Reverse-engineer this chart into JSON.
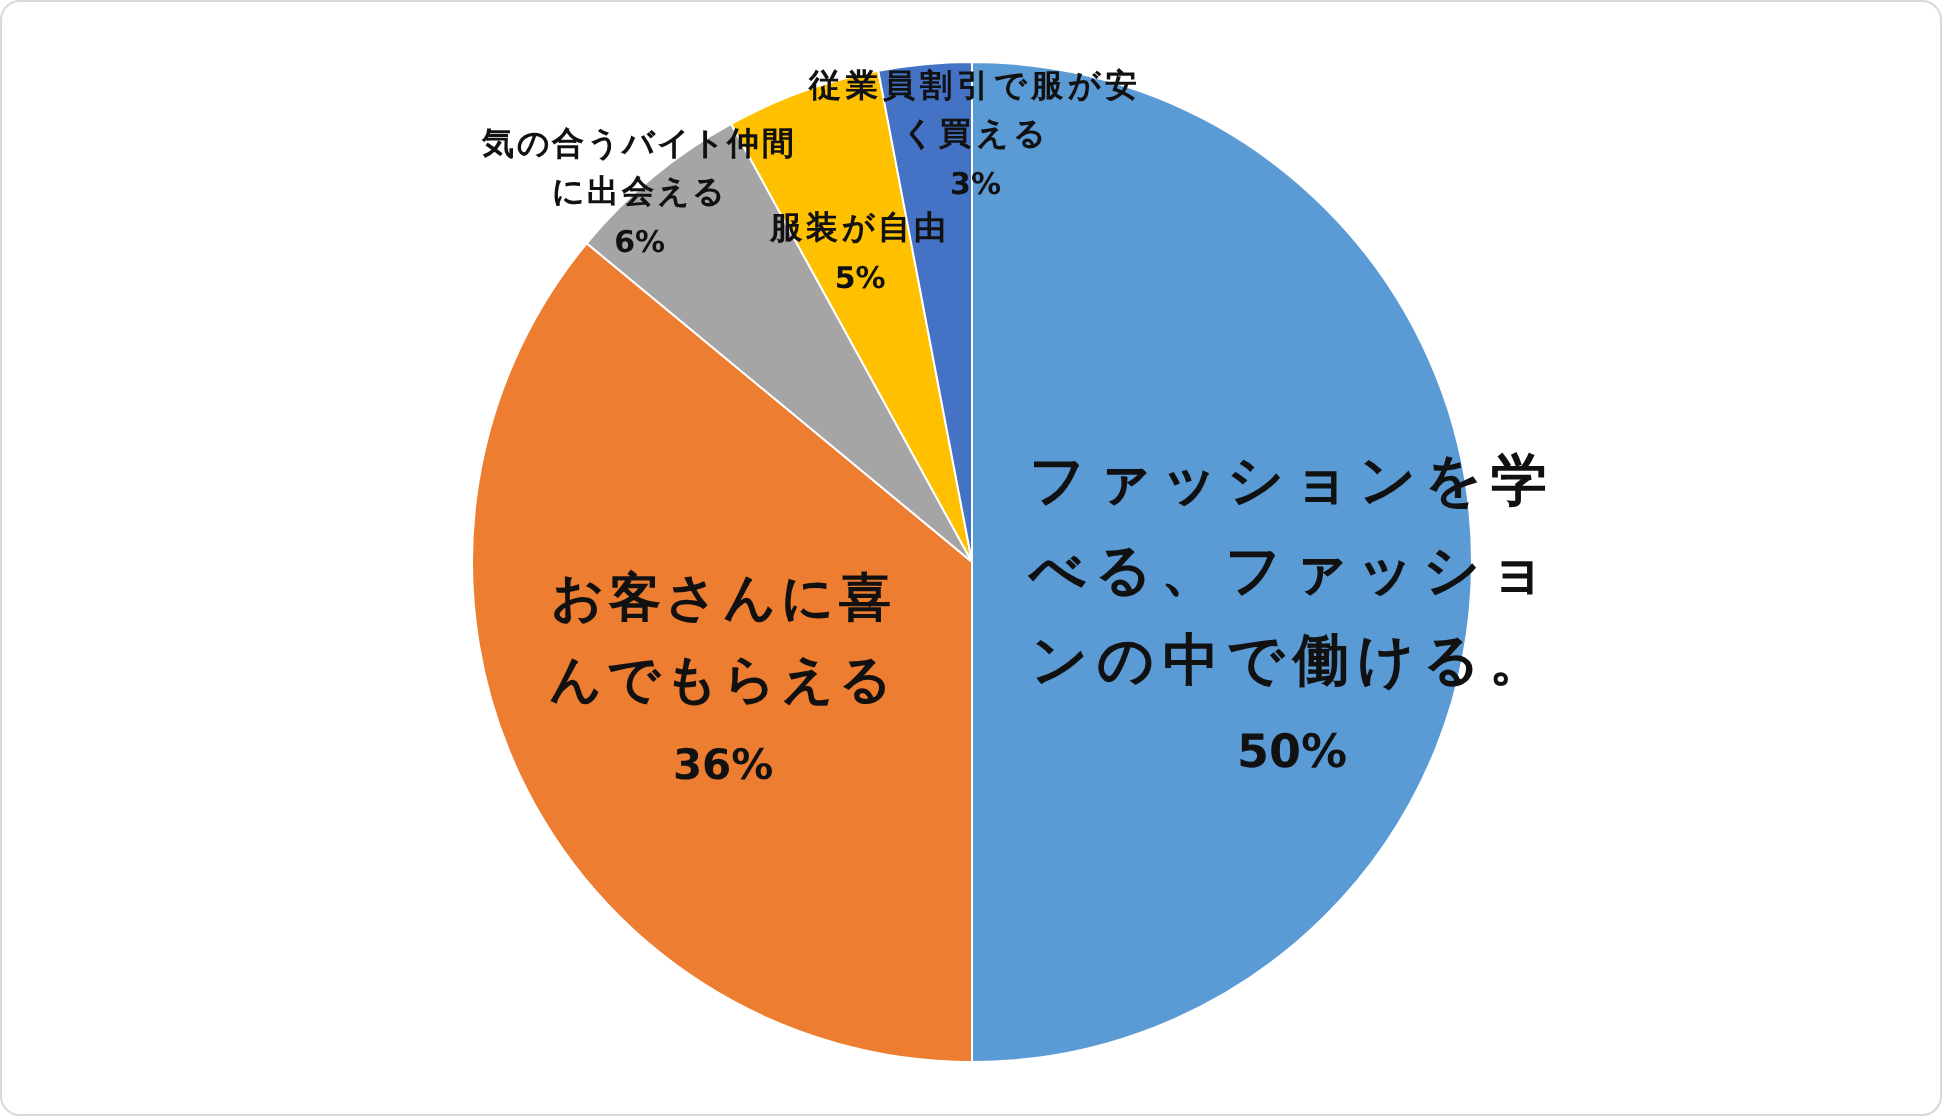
{
  "chart_data": {
    "type": "pie",
    "categories": [
      "ファッションを学べる、ファッションの中で働ける。",
      "お客さんに喜んでもらえる",
      "気の合うバイト仲間に出会える",
      "服装が自由",
      "従業員割引で服が安く買える"
    ],
    "values": [
      50,
      36,
      6,
      5,
      3
    ],
    "colors": [
      "#5b9bd5",
      "#ed7d31",
      "#a5a5a5",
      "#ffc000",
      "#4472c4"
    ],
    "value_labels": [
      "50%",
      "36%",
      "6%",
      "5%",
      "3%"
    ]
  }
}
